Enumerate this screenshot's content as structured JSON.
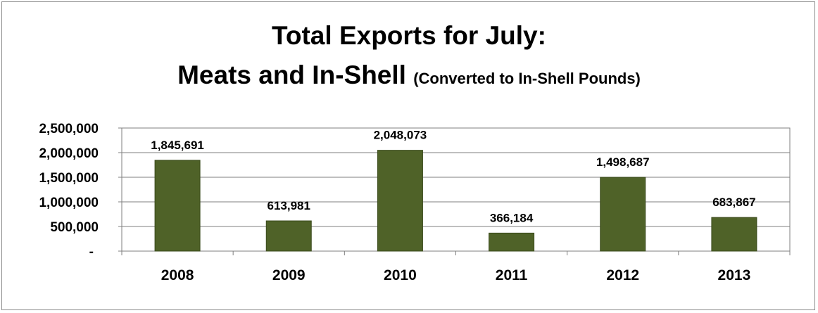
{
  "chart_data": {
    "type": "bar",
    "title": "Total Exports for July:",
    "title_line2": "Meats and In-Shell",
    "subtitle": "(Converted to In-Shell Pounds)",
    "categories": [
      "2008",
      "2009",
      "2010",
      "2011",
      "2012",
      "2013"
    ],
    "values": [
      1845691,
      613981,
      2048073,
      366184,
      1498687,
      683867
    ],
    "data_labels": [
      "1,845,691",
      "613,981",
      "2,048,073",
      "366,184",
      "1,498,687",
      "683,867"
    ],
    "yticks": [
      0,
      500000,
      1000000,
      1500000,
      2000000,
      2500000
    ],
    "ytick_labels": [
      "-",
      "500,000",
      "1,000,000",
      "1,500,000",
      "2,000,000",
      "2,500,000"
    ],
    "ylim": [
      0,
      2500000
    ],
    "xlabel": "",
    "ylabel": "",
    "grid": true,
    "legend": "none",
    "bar_color": "#4f6228"
  }
}
